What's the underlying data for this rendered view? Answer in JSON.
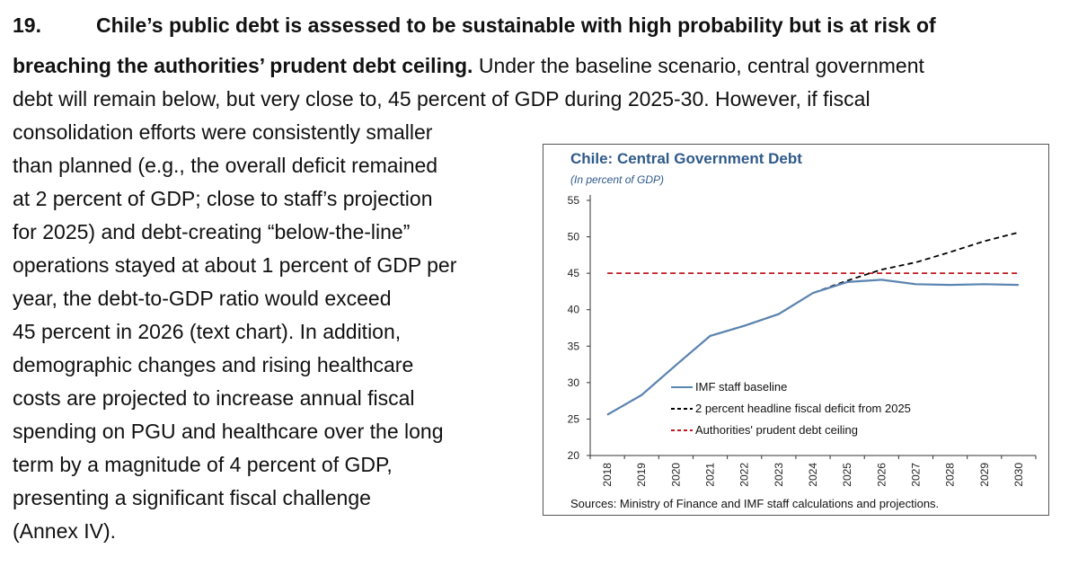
{
  "paragraph": {
    "number": "19.",
    "heading_part1": "Chile’s public debt is assessed to be sustainable with high probability but is at risk of",
    "heading_part2": "breaching the authorities’ prudent debt ceiling.",
    "line2_rest": " Under the baseline scenario, central government",
    "lines": [
      "debt will remain below, but very close to, 45 percent of GDP during 2025-30. However, if fiscal",
      "consolidation efforts were consistently smaller",
      "than planned (e.g., the overall deficit remained",
      "at 2 percent of GDP; close to staff’s projection",
      "for 2025) and debt-creating “below-the-line”",
      "operations stayed at about 1 percent of GDP per",
      "year, the debt-to-GDP ratio would exceed",
      "45 percent in 2026 (text chart). In addition,",
      "demographic changes and rising healthcare",
      "costs are projected to increase annual fiscal",
      "spending on PGU and healthcare over the long",
      "term by a magnitude of 4 percent of GDP,",
      "presenting a significant fiscal challenge",
      "(Annex IV)."
    ]
  },
  "chart_data": {
    "type": "line",
    "title": "Chile: Central Government Debt",
    "subtitle": "(In percent of GDP)",
    "source": "Sources: Ministry of Finance and IMF staff calculations and projections.",
    "x": [
      "2018",
      "2019",
      "2020",
      "2021",
      "2022",
      "2023",
      "2024",
      "2025",
      "2026",
      "2027",
      "2028",
      "2029",
      "2030"
    ],
    "ylim": [
      20,
      55
    ],
    "yticks": [
      "20",
      "25",
      "30",
      "35",
      "40",
      "45",
      "50",
      "55"
    ],
    "legend_position": "bottom-center",
    "series": [
      {
        "name": "IMF staff baseline",
        "color": "#5b84b1",
        "style": "solid",
        "values": [
          25.6,
          28.3,
          32.4,
          36.4,
          37.8,
          39.4,
          42.3,
          43.8,
          44.1,
          43.5,
          43.4,
          43.5,
          43.4
        ]
      },
      {
        "name": "2 percent headline fiscal deficit from 2025",
        "color": "#000000",
        "style": "dashed",
        "values": [
          25.6,
          28.3,
          32.4,
          36.4,
          37.8,
          39.4,
          42.3,
          44.0,
          45.5,
          46.5,
          47.9,
          49.4,
          50.6
        ]
      },
      {
        "name": "Authorities' prudent debt ceiling",
        "color": "#c0191f",
        "style": "dashed",
        "values": [
          45,
          45,
          45,
          45,
          45,
          45,
          45,
          45,
          45,
          45,
          45,
          45,
          45
        ]
      }
    ]
  }
}
